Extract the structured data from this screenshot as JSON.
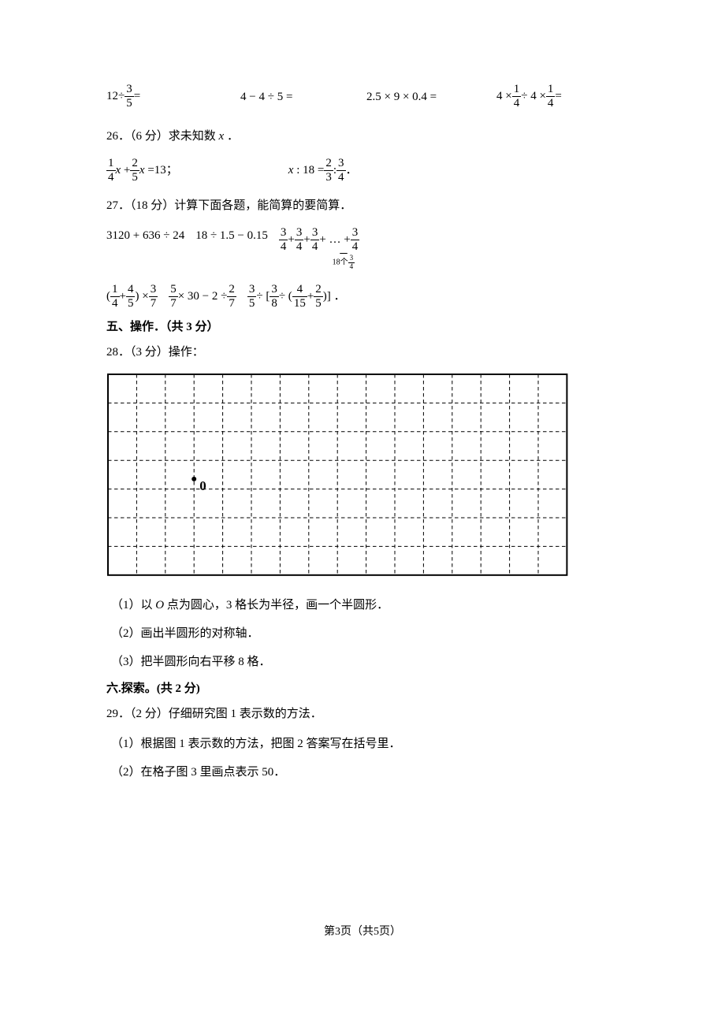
{
  "top_row": {
    "e1": {
      "lead": "12",
      "op": " ÷ ",
      "num": "3",
      "den": "5",
      "tail": " ="
    },
    "e2": "4 − 4 ÷ 5 =",
    "e3": "2.5 × 9 × 0.4 =",
    "e4": {
      "a_num": "1",
      "a_den": "4",
      "b_num": "1",
      "b_den": "4"
    }
  },
  "q26": {
    "head": "26．（6 分）求未知数 x ．",
    "eqA": {
      "a_num": "1",
      "a_den": "4",
      "b_num": "2",
      "b_den": "5",
      "rhs": "13"
    },
    "eqB": {
      "lhs": "x : 18",
      "r_a_num": "2",
      "r_a_den": "3",
      "r_b_num": "3",
      "r_b_den": "4"
    }
  },
  "q27": {
    "head": "27．（18 分）计算下面各题，能简算的要简算．",
    "row1a": "3120 + 636 ÷ 24",
    "row1b": "18 ÷ 1.5 − 0.15",
    "row1c": {
      "num": "3",
      "den": "4",
      "count_text": "18个"
    },
    "row2a": {
      "a_num": "1",
      "a_den": "4",
      "b_num": "4",
      "b_den": "5",
      "c_num": "3",
      "c_den": "7"
    },
    "row2b": {
      "a_num": "5",
      "a_den": "7",
      "b_num": "2",
      "b_den": "7"
    },
    "row2c": {
      "a_num": "3",
      "a_den": "5",
      "b_num": "3",
      "b_den": "8",
      "c_num": "4",
      "c_den": "15",
      "d_num": "2",
      "d_den": "5"
    }
  },
  "sec5": "五、操作．（共 3 分）",
  "q28": {
    "head": "28．（3 分）操作：",
    "grid": {
      "cols": 16,
      "rows": 7,
      "cell": 36.4,
      "grid_color": "#000000",
      "point_col": 3,
      "point_row": 3.65,
      "label": "0"
    },
    "s1": "（1）以 O 点为圆心，3 格长为半径，画一个半圆形．",
    "s2": "（2）画出半圆形的对称轴．",
    "s3": "（3）把半圆形向右平移 8 格．"
  },
  "sec6": "六.探索。(共 2 分)",
  "q29": {
    "head": "29．（2 分）仔细研究图 1 表示数的方法．",
    "s1": "（1）根据图 1 表示数的方法，把图 2 答案写在括号里．",
    "s2": "（2）在格子图 3 里画点表示 50．"
  },
  "footer": {
    "a": "第",
    "n": "3",
    "b": "页（共",
    "t": "5",
    "c": "页）"
  },
  "style": {
    "grid_border_w": 2,
    "grid_dash": "4.5 3.5",
    "point_r": 3
  }
}
